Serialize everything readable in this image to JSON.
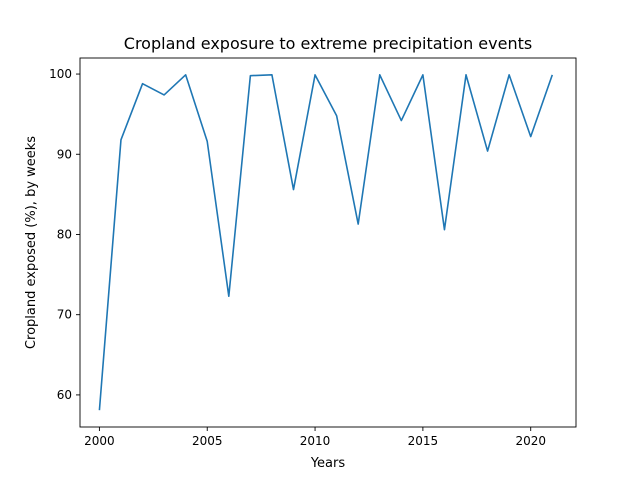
{
  "chart_data": {
    "type": "line",
    "title": "Cropland exposure to extreme precipitation events",
    "xlabel": "Years",
    "ylabel": "Cropland exposed (%), by weeks",
    "xlim": [
      1999.1,
      2022.1
    ],
    "ylim": [
      56.0,
      102.0
    ],
    "x_ticks": [
      2000,
      2005,
      2010,
      2015,
      2020
    ],
    "x_tick_labels": [
      "2000",
      "2005",
      "2010",
      "2015",
      "2020"
    ],
    "y_ticks": [
      60,
      70,
      80,
      90,
      100
    ],
    "y_tick_labels": [
      "60",
      "70",
      "80",
      "90",
      "100"
    ],
    "grid": false,
    "series": [
      {
        "color": "#1f77b4",
        "x": [
          2000,
          2001,
          2002,
          2003,
          2004,
          2005,
          2006,
          2007,
          2008,
          2009,
          2010,
          2011,
          2012,
          2013,
          2014,
          2015,
          2016,
          2017,
          2018,
          2019,
          2020,
          2021
        ],
        "values": [
          58.1,
          91.8,
          98.8,
          97.4,
          99.9,
          91.6,
          72.3,
          99.8,
          99.9,
          85.6,
          99.9,
          94.8,
          81.3,
          99.9,
          94.2,
          99.9,
          80.6,
          99.9,
          90.4,
          99.9,
          92.2,
          99.9
        ]
      }
    ]
  }
}
